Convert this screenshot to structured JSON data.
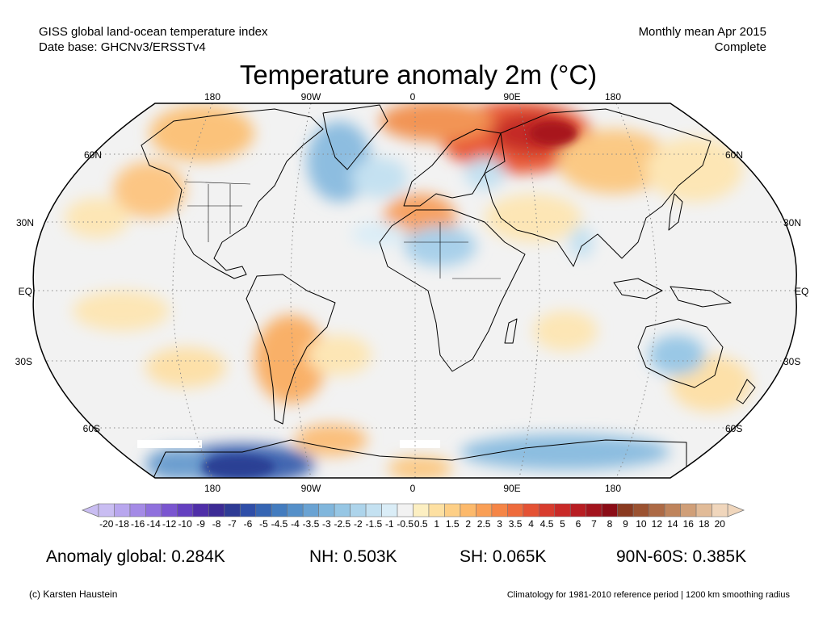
{
  "header": {
    "line1_left": "GISS global land-ocean temperature index",
    "line2_left": "Date base: GHCNv3/ERSSTv4",
    "line1_right": "Monthly mean Apr 2015",
    "line2_right": "Complete"
  },
  "title": "Temperature anomaly 2m (°C)",
  "map": {
    "projection": "Robinson",
    "lon_labels": [
      "180",
      "90W",
      "0",
      "90E",
      "180"
    ],
    "lat_labels": [
      "60N",
      "30N",
      "EQ",
      "30S",
      "60S"
    ],
    "ocean_color": "#f2f2f2",
    "missing_color": "#ffffff",
    "anomaly_regions": [
      {
        "region": "Siberia / Central Russia",
        "level": "strong-warm"
      },
      {
        "region": "Northern Europe / Scandinavia",
        "level": "warm"
      },
      {
        "region": "Western North America / Alaska",
        "level": "warm"
      },
      {
        "region": "NE Pacific",
        "level": "warm"
      },
      {
        "region": "North Africa / Sahara",
        "level": "warm"
      },
      {
        "region": "Southern South America",
        "level": "warm"
      },
      {
        "region": "Greenland / Labrador",
        "level": "cool"
      },
      {
        "region": "Western Europe / North Atlantic",
        "level": "cool"
      },
      {
        "region": "Sahel / Arabian Sea",
        "level": "cool"
      },
      {
        "region": "Australia",
        "level": "cool"
      },
      {
        "region": "Antarctica (Pacific sector)",
        "level": "strong-cool"
      },
      {
        "region": "Antarctica (Indian sector)",
        "level": "cool"
      }
    ]
  },
  "colorbar": {
    "labels": [
      "-20",
      "-18",
      "-16",
      "-14",
      "-12",
      "-10",
      "-9",
      "-8",
      "-7",
      "-6",
      "-5",
      "-4.5",
      "-4",
      "-3.5",
      "-3",
      "-2.5",
      "-2",
      "-1.5",
      "-1",
      "-0.5",
      "0.5",
      "1",
      "1.5",
      "2",
      "2.5",
      "3",
      "3.5",
      "4",
      "4.5",
      "5",
      "6",
      "7",
      "8",
      "9",
      "10",
      "12",
      "14",
      "16",
      "18",
      "20"
    ],
    "colors": [
      "#c9bdf2",
      "#b8a6ee",
      "#a48ae6",
      "#8f70dd",
      "#7a55d0",
      "#6440c0",
      "#4f2ea8",
      "#3c2b95",
      "#2e3b95",
      "#2f4ea8",
      "#3665b3",
      "#437cbf",
      "#5590c9",
      "#6aa3d3",
      "#80b6dc",
      "#96c6e4",
      "#add4eb",
      "#c4e1f1",
      "#daedf7",
      "#f2f2f2",
      "#fcefc2",
      "#fde0a2",
      "#fdcf86",
      "#fcb96b",
      "#f99f56",
      "#f58546",
      "#ee6b3c",
      "#e45234",
      "#d83c2e",
      "#c92a28",
      "#b81d22",
      "#a3141d",
      "#8b0c16",
      "#8a3a20",
      "#9b5231",
      "#ad6a45",
      "#bf845c",
      "#d09f78",
      "#e1bb98",
      "#f0d6bc"
    ]
  },
  "stats": {
    "global": "Anomaly global: 0.284K",
    "nh": "NH: 0.503K",
    "sh": "SH: 0.065K",
    "arctic": "90N-60S: 0.385K"
  },
  "footer": {
    "credit": "(c) Karsten Haustein",
    "note": "Climatology for 1981-2010 reference period | 1200 km smoothing radius"
  }
}
